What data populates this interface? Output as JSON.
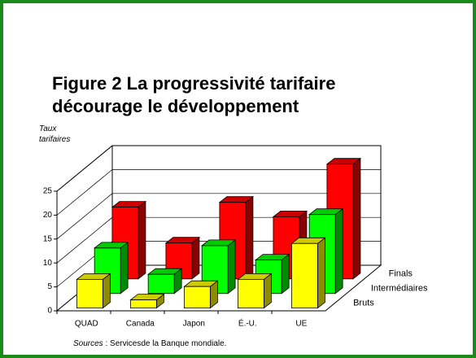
{
  "chart_data": {
    "type": "bar3d",
    "title": "Figure 2  La progressivité tarifaire",
    "subtitle": "décourage le développement",
    "ylabel": "Taux tarifaires",
    "categories": [
      "QUAD",
      "Canada",
      "Japon",
      "É.-U.",
      "UE"
    ],
    "series": [
      {
        "name": "Bruts",
        "color": "#ffff00",
        "values": [
          6,
          1.7,
          4.5,
          6,
          13.5
        ]
      },
      {
        "name": "Intermédiaires",
        "color": "#00ff00",
        "values": [
          9.5,
          4,
          10,
          7,
          16.5
        ]
      },
      {
        "name": "Finals",
        "color": "#ff0000",
        "values": [
          15,
          7.5,
          16,
          13,
          24
        ]
      }
    ],
    "ylim": [
      0,
      25
    ],
    "yticks": [
      0,
      5,
      10,
      15,
      20,
      25
    ],
    "grid": true,
    "source_label": "Sources",
    "source_text": ": Servicesde la Banque mondiale."
  }
}
